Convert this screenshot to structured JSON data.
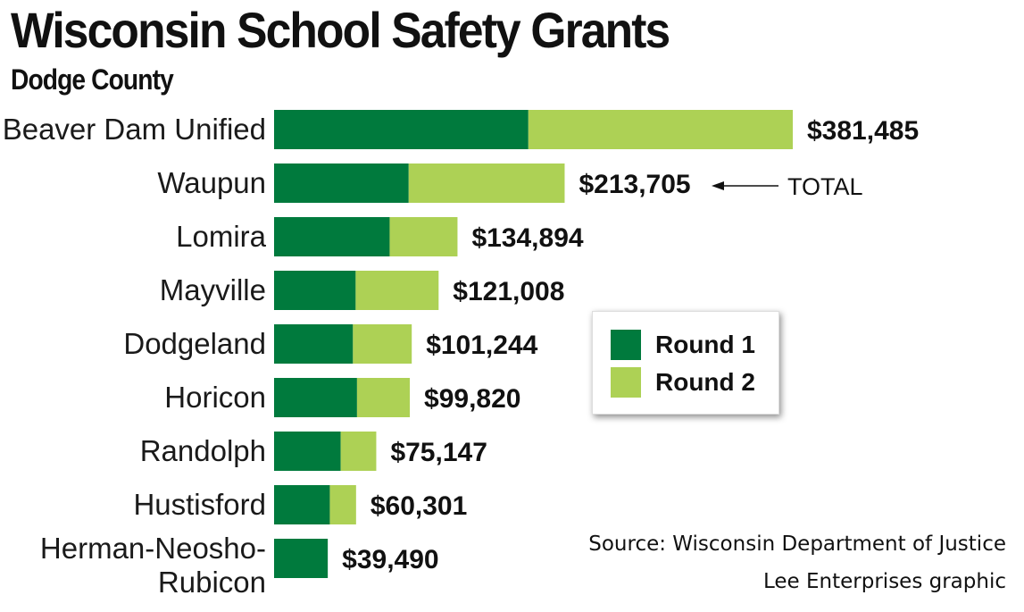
{
  "header": {
    "title": "Wisconsin School Safety Grants",
    "subtitle": "Dodge County"
  },
  "chart_data": {
    "type": "bar",
    "orientation": "horizontal",
    "stacked": true,
    "title": "Wisconsin School Safety Grants",
    "subtitle": "Dodge County",
    "categories": [
      [
        "Beaver Dam Unified"
      ],
      [
        "Waupun"
      ],
      [
        "Lomira"
      ],
      [
        "Mayville"
      ],
      [
        "Dodgeland"
      ],
      [
        "Horicon"
      ],
      [
        "Randolph"
      ],
      [
        "Hustisford"
      ],
      [
        "Herman-Neosho-",
        "Rubicon"
      ]
    ],
    "series": [
      {
        "name": "Round 1",
        "color": "#007a3d",
        "values": [
          187000,
          99000,
          85000,
          60000,
          58000,
          61000,
          49000,
          41000,
          39490
        ]
      },
      {
        "name": "Round 2",
        "color": "#add155",
        "values": [
          194485,
          114705,
          49894,
          61008,
          43244,
          38820,
          26147,
          19301,
          0
        ]
      }
    ],
    "totals": [
      381485,
      213705,
      134894,
      121008,
      101244,
      99820,
      75147,
      60301,
      39490
    ],
    "total_labels": [
      "$381,485",
      "$213,705",
      "$134,894",
      "$121,008",
      "$101,244",
      "$99,820",
      "$75,147",
      "$60,301",
      "$39,490"
    ],
    "annotation": {
      "text": "TOTAL",
      "points_to_category": "Waupun"
    },
    "xlim": [
      0,
      381485
    ],
    "xlabel": "",
    "ylabel": "",
    "grid": false,
    "legend_position": "right-middle"
  },
  "legend": {
    "items": [
      {
        "label": "Round 1",
        "color": "#007a3d"
      },
      {
        "label": "Round 2",
        "color": "#add155"
      }
    ]
  },
  "footer": {
    "source": "Source: Wisconsin Department of Justice",
    "credit": "Lee Enterprises graphic"
  }
}
